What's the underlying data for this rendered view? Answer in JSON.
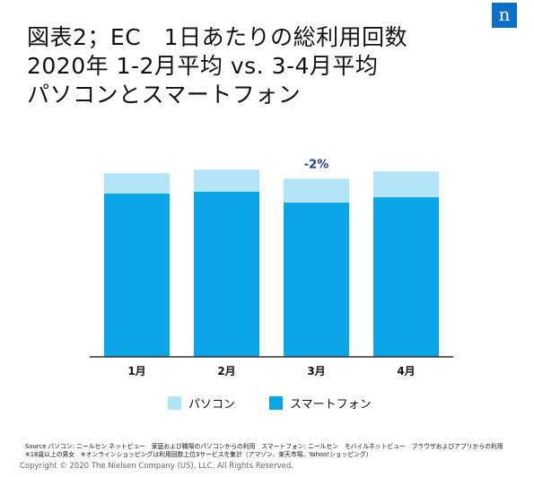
{
  "title": {
    "line1": "図表2；EC　1日あたりの総利用回数",
    "line2": "2020年 1-2月平均 vs. 3-4月平均",
    "line3": "パソコンとスマートフォン"
  },
  "logo": {
    "text": "n"
  },
  "source": {
    "line1": "Source パソコン: ニールセン ネットビュー　家庭および職場のパソコンからの利用　スマートフォン: ニールセン　モバイルネットビュー　ブラウザおよびアプリからの利用",
    "line2": "※18歳以上の男女　※オンラインショッピングは利用回数上位3サービスを集計（アマゾン、楽天市場、Yahoo!ショッピング）"
  },
  "copyright": "Copyright © 2020 The Nielsen Company (US), LLC. All Rights Reserved.",
  "colors": {
    "pc": "#b3e5f8",
    "smartphone": "#0aa5e6",
    "annotation": "#1f3d99",
    "axis": "#333333"
  },
  "chart_data": {
    "type": "bar",
    "stacked": true,
    "categories": [
      "1月",
      "2月",
      "3月",
      "4月"
    ],
    "series": [
      {
        "name": "スマートフォン",
        "values": [
          89,
          90,
          84,
          87
        ]
      },
      {
        "name": "パソコン",
        "values": [
          11,
          12,
          13,
          14
        ]
      }
    ],
    "annotations": [
      {
        "category": "3月",
        "text": "-2%"
      }
    ],
    "legend": [
      "パソコン",
      "スマートフォン"
    ],
    "legend_position": "bottom",
    "ylim": [
      0,
      105
    ],
    "grid": false
  }
}
